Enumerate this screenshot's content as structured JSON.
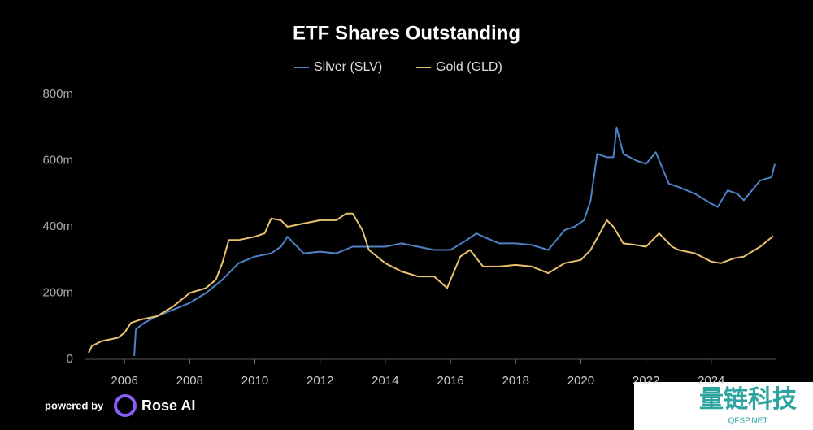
{
  "chart_data": {
    "type": "line",
    "title": "ETF Shares Outstanding",
    "series": [
      {
        "name": "Silver (SLV)",
        "color": "#4f82c6",
        "x": [
          2006.3,
          2006.35,
          2006.6,
          2007.0,
          2007.5,
          2008.0,
          2008.5,
          2009.0,
          2009.5,
          2010.0,
          2010.5,
          2010.8,
          2011.0,
          2011.3,
          2011.5,
          2012.0,
          2012.5,
          2013.0,
          2013.5,
          2014.0,
          2014.5,
          2015.0,
          2015.5,
          2016.0,
          2016.5,
          2016.8,
          2017.0,
          2017.5,
          2018.0,
          2018.5,
          2019.0,
          2019.5,
          2019.8,
          2020.1,
          2020.3,
          2020.5,
          2020.8,
          2021.0,
          2021.1,
          2021.3,
          2021.7,
          2022.0,
          2022.3,
          2022.7,
          2023.0,
          2023.5,
          2024.0,
          2024.2,
          2024.5,
          2024.8,
          2025.0,
          2025.5,
          2025.85,
          2025.95
        ],
        "values": [
          10,
          90,
          110,
          130,
          150,
          170,
          200,
          240,
          290,
          310,
          320,
          340,
          370,
          340,
          320,
          325,
          320,
          340,
          340,
          340,
          350,
          340,
          330,
          330,
          360,
          380,
          370,
          350,
          350,
          345,
          330,
          390,
          400,
          420,
          480,
          620,
          610,
          610,
          700,
          620,
          600,
          590,
          625,
          530,
          520,
          500,
          470,
          460,
          510,
          500,
          480,
          540,
          550,
          590
        ]
      },
      {
        "name": "Gold (GLD)",
        "color": "#e8c270",
        "x": [
          2004.9,
          2005.0,
          2005.3,
          2005.8,
          2006.0,
          2006.2,
          2006.5,
          2007.0,
          2007.5,
          2008.0,
          2008.5,
          2008.8,
          2009.0,
          2009.2,
          2009.5,
          2010.0,
          2010.3,
          2010.5,
          2010.8,
          2011.0,
          2011.5,
          2012.0,
          2012.5,
          2012.8,
          2013.0,
          2013.3,
          2013.5,
          2014.0,
          2014.5,
          2015.0,
          2015.5,
          2015.9,
          2016.3,
          2016.6,
          2017.0,
          2017.5,
          2018.0,
          2018.5,
          2019.0,
          2019.5,
          2020.0,
          2020.3,
          2020.8,
          2021.0,
          2021.3,
          2021.7,
          2022.0,
          2022.4,
          2022.8,
          2023.0,
          2023.5,
          2024.0,
          2024.3,
          2024.7,
          2025.0,
          2025.5,
          2025.9
        ],
        "values": [
          20,
          40,
          55,
          65,
          80,
          110,
          120,
          130,
          160,
          200,
          215,
          240,
          290,
          360,
          360,
          370,
          380,
          425,
          420,
          400,
          410,
          420,
          420,
          440,
          440,
          390,
          330,
          290,
          265,
          250,
          250,
          215,
          310,
          330,
          280,
          280,
          285,
          280,
          260,
          290,
          300,
          330,
          420,
          400,
          350,
          345,
          340,
          380,
          340,
          330,
          320,
          295,
          290,
          305,
          310,
          340,
          372
        ]
      }
    ],
    "xlim": [
      2004.8,
      2026.0
    ],
    "xticks": [
      2006,
      2008,
      2010,
      2012,
      2014,
      2016,
      2018,
      2020,
      2022,
      2024
    ],
    "ylim": [
      0,
      800
    ],
    "yticks": [
      0,
      {
        "value": 200,
        "label": "200m"
      },
      {
        "value": 400,
        "label": "400m"
      },
      {
        "value": 600,
        "label": "600m"
      },
      {
        "value": 800,
        "label": "800m"
      }
    ],
    "legend": "top"
  },
  "footer": {
    "powered_by": "powered by",
    "brand": "Rose AI"
  },
  "watermark": {
    "name": "量链科技",
    "site": "QFSP.NET"
  }
}
